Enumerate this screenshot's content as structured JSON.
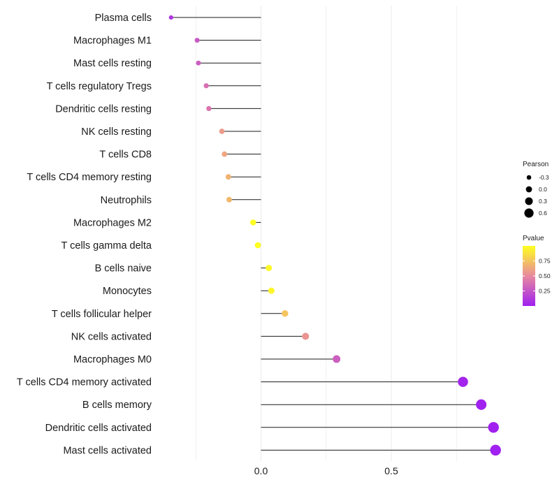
{
  "chart_data": {
    "type": "lollipop",
    "title": "",
    "xlabel": "",
    "ylabel": "",
    "xlim": [
      -0.35,
      0.95
    ],
    "x_ticks": [
      0.0,
      0.5
    ],
    "x_tick_labels": [
      "0.0",
      "0.5"
    ],
    "grid": true,
    "categories": [
      "Plasma cells",
      "Macrophages M1",
      "Mast cells resting",
      "T cells regulatory  Tregs",
      "Dendritic cells resting",
      "NK cells resting",
      "T cells CD8",
      "T cells CD4 memory resting",
      "Neutrophils",
      "Macrophages M2",
      "T cells gamma delta",
      "B cells naive",
      "Monocytes",
      "T cells follicular helper",
      "NK cells activated",
      "Macrophages M0",
      "T cells CD4 memory activated",
      "B cells memory",
      "Dendritic cells activated",
      "Mast cells activated"
    ],
    "pearson": [
      -0.345,
      -0.245,
      -0.24,
      -0.21,
      -0.2,
      -0.15,
      -0.14,
      -0.125,
      -0.122,
      -0.03,
      -0.012,
      0.03,
      0.04,
      0.092,
      0.171,
      0.29,
      0.775,
      0.845,
      0.892,
      0.9
    ],
    "pvalue": [
      0.1,
      0.28,
      0.3,
      0.38,
      0.4,
      0.58,
      0.62,
      0.68,
      0.7,
      0.99,
      0.995,
      0.97,
      0.96,
      0.75,
      0.55,
      0.3,
      0.02,
      0.01,
      0.005,
      0.003
    ],
    "legend_position": "right",
    "legends": {
      "size": {
        "title": "Pearson",
        "values": [
          -0.3,
          0.0,
          0.3,
          0.6
        ],
        "labels": [
          "-0.3",
          "0.0",
          "0.3",
          "0.6"
        ]
      },
      "color": {
        "title": "Pvalue",
        "ticks": [
          0.25,
          0.5,
          0.75
        ],
        "tick_labels": [
          "0.25",
          "0.50",
          "0.75"
        ],
        "range": [
          0,
          1
        ]
      }
    },
    "colors": {
      "low": "#a020f0",
      "mid": "#e8899f",
      "high": "#ffff20",
      "line": "#1a1a1a",
      "grid": "#ebebeb"
    }
  }
}
